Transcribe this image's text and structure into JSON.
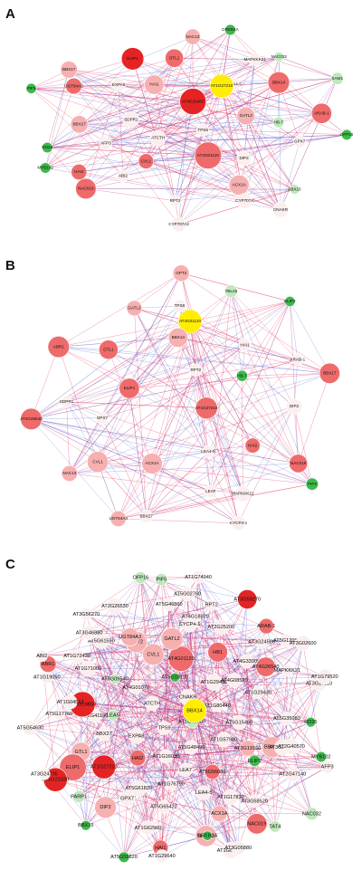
{
  "colors": {
    "edge_red": "#e0245e",
    "edge_blue": "#5b6fd6",
    "hub_yellow": "#ffee00",
    "green_dark": "#3cb94a",
    "green_light": "#bfe8bd",
    "red_dark": "#e42424",
    "red_mid": "#ef6a6a",
    "pink": "#f6b0b0",
    "white_node": "#fbeeee",
    "node_stroke": "#ffffff"
  },
  "panels": [
    {
      "letter": "A",
      "hub": "AT1G27210",
      "nodes": [
        {
          "label": "TPS8",
          "c": "white"
        },
        {
          "label": "ATCTH",
          "c": "white"
        },
        {
          "label": "AT4G25480",
          "c": "red"
        },
        {
          "label": "AT4G01120",
          "c": "red"
        },
        {
          "label": "SDPR1",
          "c": "white"
        },
        {
          "label": "GATL2",
          "c": "pink"
        },
        {
          "label": "CVL1",
          "c": "pink"
        },
        {
          "label": "HAI1",
          "c": "pink"
        },
        {
          "label": "DIP2",
          "c": "white"
        },
        {
          "label": "AFP3",
          "c": "white"
        },
        {
          "label": "LEA4-5",
          "c": "white"
        },
        {
          "label": "AT1G27210",
          "c": "hub"
        },
        {
          "label": "EXPA8",
          "c": "white"
        },
        {
          "label": "HB-7",
          "c": "green"
        },
        {
          "label": "ABI2",
          "c": "white"
        },
        {
          "label": "GTL1",
          "c": "pink"
        },
        {
          "label": "ACX1A",
          "c": "pink"
        },
        {
          "label": "BBX27",
          "c": "pink"
        },
        {
          "label": "BBX14",
          "c": "pink"
        },
        {
          "label": "RPT2",
          "c": "white"
        },
        {
          "label": "ELIP1",
          "c": "red"
        },
        {
          "label": "GPX7",
          "c": "white"
        },
        {
          "label": "HAI2",
          "c": "pink"
        },
        {
          "label": "MAPKKK21",
          "c": "white"
        },
        {
          "label": "CYP707A",
          "c": "white"
        },
        {
          "label": "UGT84A3",
          "c": "pink"
        },
        {
          "label": "ARAB-1",
          "c": "pink"
        },
        {
          "label": "NAC019",
          "c": "pink"
        },
        {
          "label": "NAC13",
          "c": "pink"
        },
        {
          "label": "BBX15",
          "c": "green"
        },
        {
          "label": "RD26",
          "c": "green"
        },
        {
          "label": "NAC032",
          "c": "green"
        },
        {
          "label": "CYP707A2",
          "c": "white"
        },
        {
          "label": "BBX17",
          "c": "pink"
        },
        {
          "label": "OFP16",
          "c": "green"
        },
        {
          "label": "MYB102",
          "c": "green"
        },
        {
          "label": "DREB2A",
          "c": "green"
        },
        {
          "label": "CNAKR",
          "c": "white"
        },
        {
          "label": "PIF5",
          "c": "green"
        },
        {
          "label": "SAM1",
          "c": "green"
        }
      ]
    },
    {
      "letter": "B",
      "hub": "AT4G01120",
      "nodes": [
        {
          "label": "AT1G27210",
          "c": "red"
        },
        {
          "label": "AT4G01120",
          "c": "hub"
        },
        {
          "label": "RPT2",
          "c": "white"
        },
        {
          "label": "LEA4-5",
          "c": "white"
        },
        {
          "label": "ELIP1",
          "c": "pink"
        },
        {
          "label": "HB-7",
          "c": "green"
        },
        {
          "label": "ACX1A",
          "c": "pink"
        },
        {
          "label": "BBX14",
          "c": "pink"
        },
        {
          "label": "HAI2",
          "c": "pink"
        },
        {
          "label": "GPX7",
          "c": "white"
        },
        {
          "label": "HAI1",
          "c": "white"
        },
        {
          "label": "LEAF",
          "c": "white"
        },
        {
          "label": "GTL1",
          "c": "pink"
        },
        {
          "label": "DIP2",
          "c": "white"
        },
        {
          "label": "CVL1",
          "c": "pink"
        },
        {
          "label": "TPS8",
          "c": "white"
        },
        {
          "label": "MAPKKK21",
          "c": "white"
        },
        {
          "label": "SDPR1",
          "c": "white"
        },
        {
          "label": "ARAB-1",
          "c": "white"
        },
        {
          "label": "BBX27",
          "c": "white"
        },
        {
          "label": "GATL2",
          "c": "pink"
        },
        {
          "label": "NAC019",
          "c": "pink"
        },
        {
          "label": "NAC13",
          "c": "pink"
        },
        {
          "label": "TBL25",
          "c": "green"
        },
        {
          "label": "CYCP4-1",
          "c": "white"
        },
        {
          "label": "ABR1",
          "c": "pink"
        },
        {
          "label": "BBX17",
          "c": "pink"
        },
        {
          "label": "UGT84A3",
          "c": "pink"
        },
        {
          "label": "GPT2",
          "c": "pink"
        },
        {
          "label": "PIF3",
          "c": "green"
        },
        {
          "label": "AT4G26540",
          "c": "pink"
        },
        {
          "label": "ELIP2",
          "c": "green"
        }
      ]
    },
    {
      "letter": "C",
      "hub": "BBX14",
      "nodes": [
        {
          "label": "AT1G48000",
          "c": "green"
        },
        {
          "label": "TPS9",
          "c": "white"
        },
        {
          "label": "CNAKR",
          "c": "white"
        },
        {
          "label": "AT5G48490",
          "c": "white"
        },
        {
          "label": "ATCTH",
          "c": "white"
        },
        {
          "label": "AT1G80440",
          "c": "white"
        },
        {
          "label": "AT1G16030",
          "c": "white"
        },
        {
          "label": "AT5G10120",
          "c": "green"
        },
        {
          "label": "AT1G57980",
          "c": "white"
        },
        {
          "label": "EXPA8",
          "c": "white"
        },
        {
          "label": "AT1G29460",
          "c": "white"
        },
        {
          "label": "LEA7",
          "c": "white"
        },
        {
          "label": "AT4G01070",
          "c": "white"
        },
        {
          "label": "AT5G15480",
          "c": "white"
        },
        {
          "label": "HAI2",
          "c": "pink"
        },
        {
          "label": "AT4G01120",
          "c": "red"
        },
        {
          "label": "AT5G56080",
          "c": "pink"
        },
        {
          "label": "LEA5",
          "c": "green"
        },
        {
          "label": "AT4G08570",
          "c": "white"
        },
        {
          "label": "AT1G76790",
          "c": "white"
        },
        {
          "label": "CVL1",
          "c": "pink"
        },
        {
          "label": "AT3G19160",
          "c": "pink"
        },
        {
          "label": "BBX27",
          "c": "white"
        },
        {
          "label": "HB1",
          "c": "pink"
        },
        {
          "label": "LEA4-5",
          "c": "white"
        },
        {
          "label": "AT3G09540",
          "c": "green"
        },
        {
          "label": "AT1G29430",
          "c": "white"
        },
        {
          "label": "AT5G61820",
          "c": "white"
        },
        {
          "label": "GATL2",
          "c": "pink"
        },
        {
          "label": "ELIP2",
          "c": "green"
        },
        {
          "label": "AT2G41190",
          "c": "white"
        },
        {
          "label": "AT4G33905",
          "c": "white"
        },
        {
          "label": "AT5G65422",
          "c": "white"
        },
        {
          "label": "GPT2",
          "c": "pink"
        },
        {
          "label": "BBX17",
          "c": "pink"
        },
        {
          "label": "AT1G27210",
          "c": "red"
        },
        {
          "label": "CYCP4-1",
          "c": "white"
        },
        {
          "label": "AT1G17830",
          "c": "white"
        },
        {
          "label": "AT3G19850",
          "c": "red"
        },
        {
          "label": "AT4G26540",
          "c": "pink"
        },
        {
          "label": "GPX7",
          "c": "white"
        },
        {
          "label": "UGT84A3",
          "c": "pink"
        },
        {
          "label": "AT3G23880",
          "c": "white"
        },
        {
          "label": "GTL1",
          "c": "pink"
        },
        {
          "label": "AT2G25200",
          "c": "white"
        },
        {
          "label": "ACX1A",
          "c": "pink"
        },
        {
          "label": "AT1G71000",
          "c": "white"
        },
        {
          "label": "AT5G35080",
          "c": "white"
        },
        {
          "label": "BBX14",
          "c": "hub"
        },
        {
          "label": "AT4G18020",
          "c": "white"
        },
        {
          "label": "AT3G58520",
          "c": "white"
        },
        {
          "label": "AT1G04513",
          "c": "white"
        },
        {
          "label": "AT3G24500",
          "c": "white"
        },
        {
          "label": "AT1G62960",
          "c": "white"
        },
        {
          "label": "AT5G61590",
          "c": "white"
        },
        {
          "label": "AT2G40570",
          "c": "white"
        },
        {
          "label": "ELIP1",
          "c": "red"
        },
        {
          "label": "RPT2",
          "c": "white"
        },
        {
          "label": "NAC13",
          "c": "pink"
        },
        {
          "label": "AT1G72430",
          "c": "white"
        },
        {
          "label": "MAPKKK21",
          "c": "white"
        },
        {
          "label": "DIP2",
          "c": "pink"
        },
        {
          "label": "AT5G46860",
          "c": "white"
        },
        {
          "label": "AT2G47140",
          "c": "white"
        },
        {
          "label": "AT5G17760",
          "c": "white"
        },
        {
          "label": "ARAB-1",
          "c": "pink"
        },
        {
          "label": "DREB2A",
          "c": "green"
        },
        {
          "label": "AT3G46880",
          "c": "white"
        },
        {
          "label": "RD26",
          "c": "green"
        },
        {
          "label": "PARP1",
          "c": "green"
        },
        {
          "label": "AT5G02760",
          "c": "white"
        },
        {
          "label": "NAC019",
          "c": "pink"
        },
        {
          "label": "AT1G19050",
          "c": "white"
        },
        {
          "label": "AT5G12010",
          "c": "white"
        },
        {
          "label": "HAI1",
          "c": "pink"
        },
        {
          "label": "AT2G26530",
          "c": "white"
        },
        {
          "label": "MYB102",
          "c": "green"
        },
        {
          "label": "AT1G22330",
          "c": "red"
        },
        {
          "label": "AT3G59270",
          "c": "red"
        },
        {
          "label": "AT1G67360",
          "c": "white"
        },
        {
          "label": "ABR1",
          "c": "pink"
        },
        {
          "label": "AT3G17110",
          "c": "white"
        },
        {
          "label": "BBX15",
          "c": "green"
        },
        {
          "label": "PIF5",
          "c": "green"
        },
        {
          "label": "TAT4",
          "c": "green"
        },
        {
          "label": "AT5G54630",
          "c": "white"
        },
        {
          "label": "AT3G02600",
          "c": "white"
        },
        {
          "label": "AT1G29640",
          "c": "white"
        },
        {
          "label": "AT3G56270",
          "c": "white"
        },
        {
          "label": "AFP3",
          "c": "white"
        },
        {
          "label": "AT3G24735",
          "c": "white"
        },
        {
          "label": "AT1G74940",
          "c": "white"
        },
        {
          "label": "AT3G05880",
          "c": "white"
        },
        {
          "label": "ABI2",
          "c": "white"
        },
        {
          "label": "AT1G79520",
          "c": "white"
        },
        {
          "label": "AT5G59820",
          "c": "green"
        },
        {
          "label": "OFP16",
          "c": "green"
        },
        {
          "label": "NAC032",
          "c": "green"
        }
      ]
    }
  ]
}
